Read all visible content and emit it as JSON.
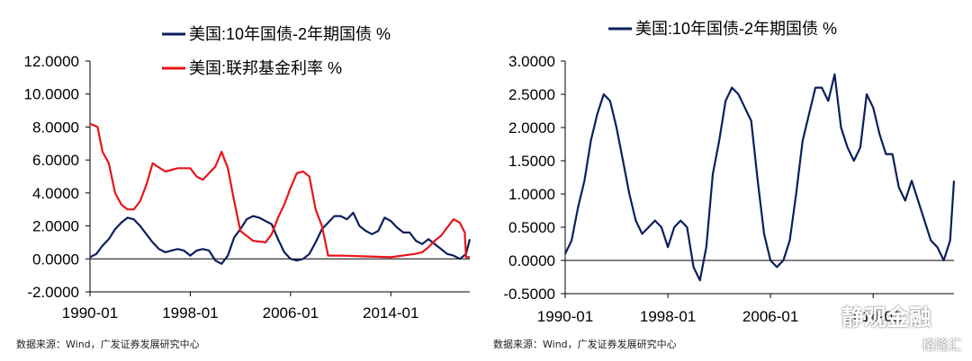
{
  "colors": {
    "navy": "#0b1f5c",
    "red": "#e8141b",
    "axis": "#000000"
  },
  "source_left": "数据来源：Wind，广发证券发展研究中心",
  "source_right": "数据来源：Wind，广发证券发展研究中心",
  "watermark": {
    "text_1": "静观金融",
    "text_2": "格隆汇",
    "icons": [
      "wechat-icon",
      "gelonghui-logo-icon"
    ]
  },
  "chart_data": [
    {
      "type": "line",
      "x_tick_labels": [
        "1990-01",
        "1998-01",
        "2006-01",
        "2014-01"
      ],
      "x_ticks": [
        1990,
        1998,
        2006,
        2014
      ],
      "xlim": [
        1990,
        2020.3
      ],
      "ylim": [
        -2,
        12
      ],
      "y_tick_labels": [
        "12.0000",
        "10.0000",
        "8.0000",
        "6.0000",
        "4.0000",
        "2.0000",
        "0.0000",
        "-2.0000"
      ],
      "y_ticks": [
        12,
        10,
        8,
        6,
        4,
        2,
        0,
        -2
      ],
      "legend_position": "top-center",
      "series": [
        {
          "name": "美国:10年国债-2年期国债 %",
          "color": "#0b1f5c",
          "x": [
            1990.0,
            1990.5,
            1991.0,
            1991.5,
            1992.0,
            1992.5,
            1993.0,
            1993.5,
            1994.0,
            1994.5,
            1995.0,
            1995.5,
            1996.0,
            1996.5,
            1997.0,
            1997.5,
            1998.0,
            1998.5,
            1999.0,
            1999.5,
            2000.0,
            2000.5,
            2001.0,
            2001.5,
            2002.0,
            2002.5,
            2003.0,
            2003.5,
            2004.0,
            2004.5,
            2005.0,
            2005.5,
            2006.0,
            2006.5,
            2007.0,
            2007.5,
            2008.0,
            2008.5,
            2009.0,
            2009.5,
            2010.0,
            2010.5,
            2011.0,
            2011.5,
            2012.0,
            2012.5,
            2013.0,
            2013.5,
            2014.0,
            2014.5,
            2015.0,
            2015.5,
            2016.0,
            2016.5,
            2017.0,
            2017.5,
            2018.0,
            2018.5,
            2019.0,
            2019.5,
            2020.0,
            2020.3
          ],
          "y": [
            0.1,
            0.3,
            0.8,
            1.2,
            1.8,
            2.2,
            2.5,
            2.4,
            2.0,
            1.5,
            1.0,
            0.6,
            0.4,
            0.5,
            0.6,
            0.5,
            0.2,
            0.5,
            0.6,
            0.5,
            -0.1,
            -0.3,
            0.2,
            1.3,
            1.8,
            2.4,
            2.6,
            2.5,
            2.3,
            2.1,
            1.2,
            0.4,
            0.0,
            -0.1,
            0.0,
            0.3,
            1.0,
            1.8,
            2.2,
            2.6,
            2.6,
            2.4,
            2.8,
            2.0,
            1.7,
            1.5,
            1.7,
            2.5,
            2.3,
            1.9,
            1.6,
            1.6,
            1.1,
            0.9,
            1.2,
            0.9,
            0.6,
            0.3,
            0.2,
            0.0,
            0.3,
            1.2
          ]
        },
        {
          "name": "美国:联邦基金利率 %",
          "color": "#e8141b",
          "x": [
            1990.0,
            1990.6,
            1991.0,
            1991.5,
            1992.0,
            1992.5,
            1993.0,
            1993.5,
            1994.0,
            1994.5,
            1995.0,
            1996.0,
            1997.0,
            1998.0,
            1998.5,
            1999.0,
            1999.5,
            2000.0,
            2000.5,
            2001.0,
            2001.5,
            2002.0,
            2003.0,
            2004.0,
            2004.5,
            2005.0,
            2005.5,
            2006.0,
            2006.5,
            2007.0,
            2007.5,
            2008.0,
            2008.5,
            2009.0,
            2010.0,
            2012.0,
            2014.0,
            2015.9,
            2016.5,
            2017.0,
            2017.5,
            2018.0,
            2018.5,
            2019.0,
            2019.5,
            2019.9,
            2020.0,
            2020.3
          ],
          "y": [
            8.2,
            8.0,
            6.5,
            5.8,
            4.0,
            3.3,
            3.0,
            3.0,
            3.5,
            4.5,
            5.8,
            5.3,
            5.5,
            5.5,
            5.0,
            4.8,
            5.2,
            5.6,
            6.5,
            5.5,
            3.5,
            1.7,
            1.1,
            1.0,
            1.5,
            2.5,
            3.3,
            4.3,
            5.2,
            5.3,
            5.0,
            3.0,
            2.0,
            0.2,
            0.2,
            0.15,
            0.1,
            0.3,
            0.4,
            0.7,
            1.1,
            1.4,
            1.9,
            2.4,
            2.2,
            1.6,
            0.1,
            0.1
          ]
        }
      ]
    },
    {
      "type": "line",
      "x_tick_labels": [
        "1990-01",
        "1998-01",
        "2006-01",
        "2014-01"
      ],
      "x_ticks": [
        1990,
        1998,
        2006,
        2014
      ],
      "xlim": [
        1990,
        2020.3
      ],
      "ylim": [
        -0.5,
        3.0
      ],
      "y_tick_labels": [
        "3.0000",
        "2.5000",
        "2.0000",
        "1.5000",
        "1.0000",
        "0.5000",
        "0.0000",
        "-0.5000"
      ],
      "y_ticks": [
        3.0,
        2.5,
        2.0,
        1.5,
        1.0,
        0.5,
        0.0,
        -0.5
      ],
      "legend_position": "top-center",
      "series": [
        {
          "name": "美国:10年国债-2年期国债 %",
          "color": "#0b1f5c",
          "x": [
            1990.0,
            1990.5,
            1991.0,
            1991.5,
            1992.0,
            1992.5,
            1993.0,
            1993.5,
            1994.0,
            1994.5,
            1995.0,
            1995.5,
            1996.0,
            1996.5,
            1997.0,
            1997.5,
            1998.0,
            1998.5,
            1999.0,
            1999.5,
            2000.0,
            2000.5,
            2001.0,
            2001.5,
            2002.0,
            2002.5,
            2003.0,
            2003.5,
            2004.0,
            2004.5,
            2005.0,
            2005.5,
            2006.0,
            2006.5,
            2007.0,
            2007.5,
            2008.0,
            2008.5,
            2009.0,
            2009.5,
            2010.0,
            2010.5,
            2011.0,
            2011.5,
            2012.0,
            2012.5,
            2013.0,
            2013.5,
            2014.0,
            2014.5,
            2015.0,
            2015.5,
            2016.0,
            2016.5,
            2017.0,
            2017.5,
            2018.0,
            2018.5,
            2019.0,
            2019.5,
            2020.0,
            2020.3
          ],
          "y": [
            0.1,
            0.3,
            0.8,
            1.2,
            1.8,
            2.2,
            2.5,
            2.4,
            2.0,
            1.5,
            1.0,
            0.6,
            0.4,
            0.5,
            0.6,
            0.5,
            0.2,
            0.5,
            0.6,
            0.5,
            -0.1,
            -0.3,
            0.2,
            1.3,
            1.8,
            2.4,
            2.6,
            2.5,
            2.3,
            2.1,
            1.2,
            0.4,
            0.0,
            -0.1,
            0.0,
            0.3,
            1.0,
            1.8,
            2.2,
            2.6,
            2.6,
            2.4,
            2.8,
            2.0,
            1.7,
            1.5,
            1.7,
            2.5,
            2.3,
            1.9,
            1.6,
            1.6,
            1.1,
            0.9,
            1.2,
            0.9,
            0.6,
            0.3,
            0.2,
            0.0,
            0.3,
            1.2
          ]
        }
      ]
    }
  ]
}
